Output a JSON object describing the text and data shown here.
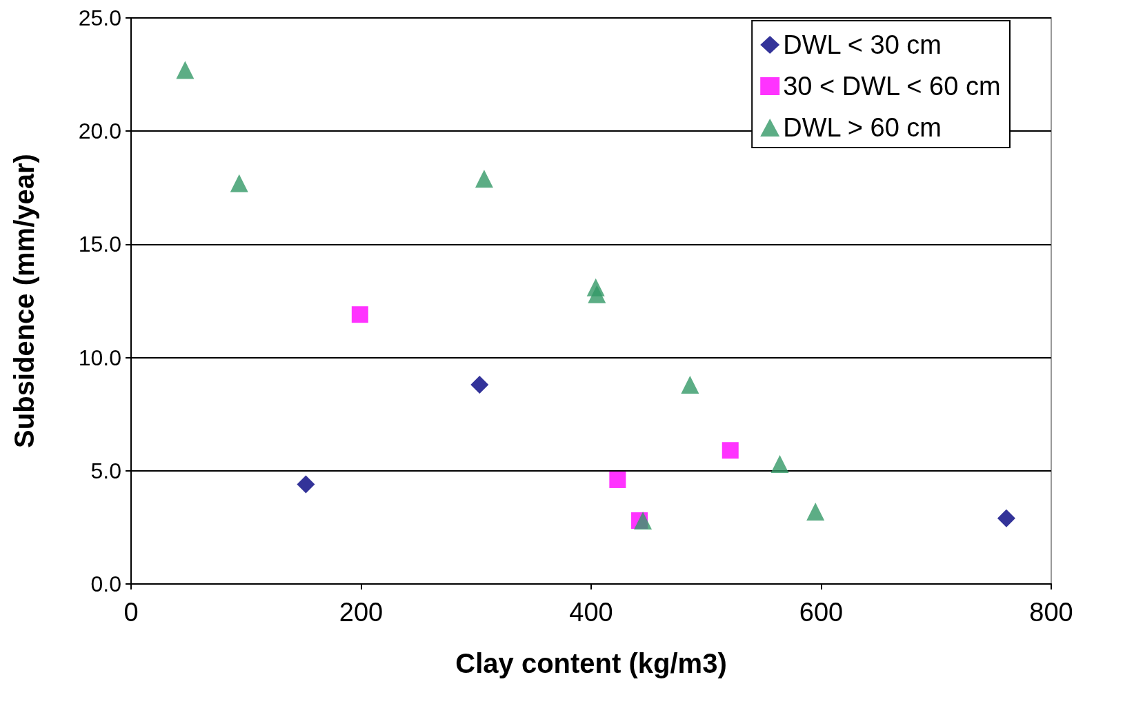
{
  "chart_data": {
    "type": "scatter",
    "xlabel": "Clay content (kg/m3)",
    "ylabel": "Subsidence (mm/year)",
    "xlim": [
      0,
      800
    ],
    "xticks": [
      0,
      200,
      400,
      600,
      800
    ],
    "ylim": [
      0,
      25
    ],
    "yticks": [
      {
        "value": 0,
        "label": "0.0"
      },
      {
        "value": 5,
        "label": "5.0"
      },
      {
        "value": 10,
        "label": "10.0"
      },
      {
        "value": 15,
        "label": "15.0"
      },
      {
        "value": 20,
        "label": "20.0"
      },
      {
        "value": 25,
        "label": "25.0"
      }
    ],
    "grid": "y",
    "legend": "top right",
    "series": [
      {
        "name": "DWL < 30 cm",
        "color": "#000080",
        "marker": "diamond",
        "x": [
          152,
          303,
          761
        ],
        "values": [
          4.4,
          8.8,
          2.9
        ]
      },
      {
        "name": "30 < DWL < 60 cm",
        "color": "#ff00ff",
        "marker": "square",
        "x": [
          199,
          423,
          442,
          521
        ],
        "values": [
          11.9,
          4.6,
          2.8,
          5.9
        ]
      },
      {
        "name": "DWL > 60 cm",
        "color": "#339966",
        "marker": "triangle",
        "x": [
          47,
          94,
          307,
          404,
          405,
          486,
          445,
          564,
          595
        ],
        "values": [
          22.7,
          17.7,
          17.9,
          13.1,
          12.8,
          8.8,
          2.8,
          5.3,
          3.2
        ]
      }
    ]
  }
}
